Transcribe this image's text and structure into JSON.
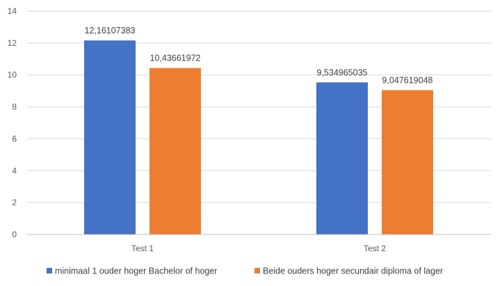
{
  "chart_data": {
    "type": "bar",
    "categories": [
      "Test 1",
      "Test 2"
    ],
    "series": [
      {
        "name": "minimaal 1 ouder hoger Bachelor of hoger",
        "values": [
          12.16107383,
          9.534965035
        ],
        "labels": [
          "12,16107383",
          "9,534965035"
        ],
        "color": "#4472C4"
      },
      {
        "name": "Beide ouders hoger secundair diploma of lager",
        "values": [
          10.43661972,
          9.047619048
        ],
        "labels": [
          "10,43661972",
          "9,047619048"
        ],
        "color": "#ED7D31"
      }
    ],
    "ylim": [
      0,
      14
    ],
    "yticks": [
      "0",
      "2",
      "4",
      "6",
      "8",
      "10",
      "12",
      "14"
    ],
    "grid": true,
    "legend_position": "bottom",
    "title": "",
    "xlabel": "",
    "ylabel": ""
  }
}
